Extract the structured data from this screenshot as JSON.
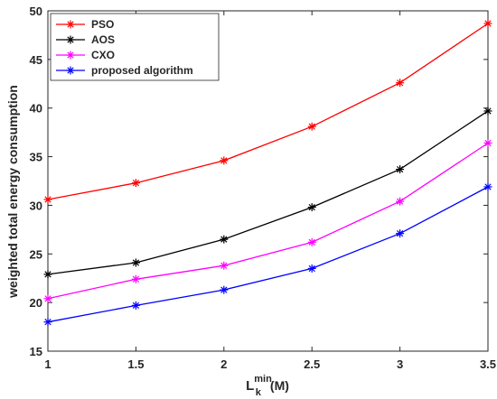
{
  "chart_data": {
    "type": "line",
    "title": "",
    "xlabel": {
      "base": "L",
      "sub": "k",
      "sup": "min",
      "suffix": "(M)"
    },
    "ylabel": "weighted total energy consumption",
    "x": [
      1,
      1.5,
      2,
      2.5,
      3,
      3.5
    ],
    "xlim": [
      1,
      3.5
    ],
    "ylim": [
      15,
      50
    ],
    "x_ticks": [
      "1",
      "1.5",
      "2",
      "2.5",
      "3",
      "3.5"
    ],
    "y_ticks": [
      "15",
      "20",
      "25",
      "30",
      "35",
      "40",
      "45",
      "50"
    ],
    "marker": "asterisk",
    "grid": false,
    "legend_position": "top-left",
    "series": [
      {
        "name": "PSO",
        "color": "#ff0000",
        "values": [
          30.6,
          32.3,
          34.6,
          38.1,
          42.6,
          48.7
        ]
      },
      {
        "name": "AOS",
        "color": "#000000",
        "values": [
          22.9,
          24.1,
          26.5,
          29.8,
          33.7,
          39.7
        ]
      },
      {
        "name": "CXO",
        "color": "#ff00ff",
        "values": [
          20.4,
          22.4,
          23.8,
          26.2,
          30.4,
          36.4
        ]
      },
      {
        "name": "proposed algorithm",
        "color": "#0000ff",
        "values": [
          18.0,
          19.7,
          21.3,
          23.5,
          27.1,
          31.9
        ]
      }
    ]
  }
}
